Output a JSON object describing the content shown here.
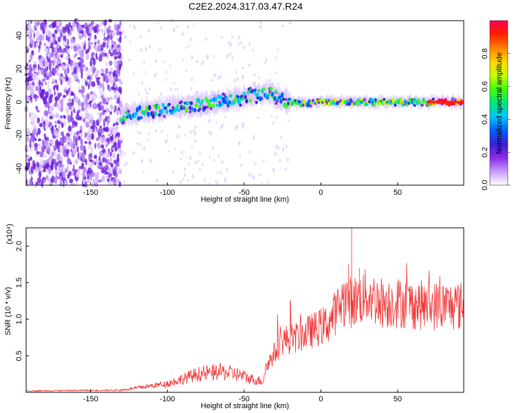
{
  "title": "C2E2.2024.317.03.47.R24",
  "chart_data": [
    {
      "type": "heatmap",
      "xlabel": "Height of straight line (km)",
      "ylabel": "Frequency (Hz)",
      "xlim": [
        -192,
        93
      ],
      "ylim": [
        -50,
        49
      ],
      "xticks": [
        -150,
        -100,
        -50,
        0,
        50
      ],
      "yticks": [
        -40,
        -20,
        0,
        20,
        40
      ],
      "colorbar": {
        "label": "Normalized spectral amplitude",
        "range": [
          0,
          1
        ],
        "ticks": [
          "0.0",
          "0.2",
          "0.4",
          "0.6",
          "0.8"
        ],
        "colors": [
          "#ffffff",
          "#c89bff",
          "#8a2be2",
          "#3a1fd6",
          "#0060ff",
          "#00c8ff",
          "#00e87a",
          "#40ff00",
          "#c8ff00",
          "#ffd800",
          "#ff8000",
          "#ff2000",
          "#ff0050"
        ]
      },
      "centerline": [
        [
          -128,
          -8
        ],
        [
          -100,
          -4
        ],
        [
          -75,
          -1
        ],
        [
          -55,
          2
        ],
        [
          -40,
          5
        ],
        [
          -32,
          6
        ],
        [
          -28,
          2
        ],
        [
          -20,
          0
        ],
        [
          -10,
          -1
        ],
        [
          0,
          0
        ],
        [
          50,
          0
        ],
        [
          93,
          0
        ]
      ],
      "noise_region_x": [
        -192,
        -130
      ]
    },
    {
      "type": "line",
      "xlabel": "Height of straight line (km)",
      "ylabel": "SNR (10 * v/v)",
      "multiplier": "(x10⁴)",
      "xlim": [
        -192,
        93
      ],
      "ylim": [
        0,
        2.25
      ],
      "xticks": [
        -150,
        -100,
        -50,
        0,
        50
      ],
      "yticks": [
        0.5,
        1.0,
        1.5,
        2.0
      ],
      "color": "#f03232",
      "envelope": [
        [
          -192,
          0.02
        ],
        [
          -130,
          0.03
        ],
        [
          -120,
          0.06
        ],
        [
          -100,
          0.12
        ],
        [
          -80,
          0.25
        ],
        [
          -65,
          0.28
        ],
        [
          -55,
          0.25
        ],
        [
          -45,
          0.18
        ],
        [
          -38,
          0.15
        ],
        [
          -35,
          0.4
        ],
        [
          -25,
          0.75
        ],
        [
          -15,
          0.8
        ],
        [
          -5,
          0.9
        ],
        [
          5,
          1.0
        ],
        [
          15,
          1.35
        ],
        [
          20,
          1.3
        ],
        [
          30,
          1.4
        ],
        [
          40,
          1.3
        ],
        [
          50,
          1.3
        ],
        [
          70,
          1.25
        ],
        [
          93,
          1.25
        ]
      ],
      "peaks": [
        {
          "x": 20,
          "y": 2.25
        },
        {
          "x": 18,
          "y": 1.75
        },
        {
          "x": 25,
          "y": 1.7
        },
        {
          "x": -20,
          "y": 1.25
        }
      ]
    }
  ]
}
